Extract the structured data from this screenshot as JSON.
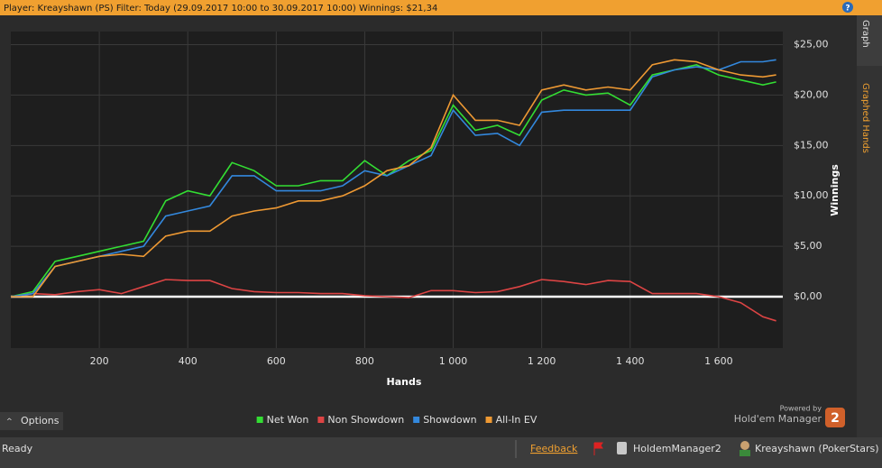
{
  "header": {
    "text": "Player: Kreayshawn (PS) Filter: Today (29.09.2017 10:00 to 30.09.2017 10:00) Winnings: $21,34",
    "help": "?"
  },
  "side_tabs": [
    "Graph",
    "Graphed Hands"
  ],
  "options": "Options",
  "branding": {
    "powered_by": "Powered by",
    "product": "Hold'em Manager",
    "version": "2"
  },
  "status_bar": {
    "status": "Ready",
    "feedback": "Feedback",
    "database": "HoldemManager2",
    "player": "Kreayshawn (PokerStars)"
  },
  "chart_data": {
    "type": "line",
    "xlabel": "Hands",
    "ylabel": "Winnings",
    "x": [
      0,
      50,
      100,
      150,
      200,
      250,
      300,
      350,
      400,
      450,
      500,
      550,
      600,
      650,
      700,
      750,
      800,
      850,
      900,
      950,
      1000,
      1050,
      1100,
      1150,
      1200,
      1250,
      1300,
      1350,
      1400,
      1450,
      1500,
      1550,
      1600,
      1650,
      1700,
      1730
    ],
    "series": [
      {
        "name": "Net Won",
        "color": "#33dd33",
        "values": [
          0,
          0.5,
          3.5,
          4,
          4.5,
          5,
          5.5,
          9.5,
          10.5,
          10,
          13.3,
          12.5,
          11,
          11,
          11.5,
          11.5,
          13.5,
          12,
          13.5,
          14.5,
          19,
          16.5,
          17,
          16,
          19.5,
          20.5,
          20,
          20.2,
          19,
          22,
          22.5,
          23,
          22,
          21.5,
          21,
          21.3
        ]
      },
      {
        "name": "Non Showdown",
        "color": "#dd4444",
        "values": [
          0,
          0.3,
          0.2,
          0.5,
          0.7,
          0.3,
          1,
          1.7,
          1.6,
          1.6,
          0.8,
          0.5,
          0.4,
          0.4,
          0.3,
          0.3,
          0.1,
          0,
          -0.1,
          0.6,
          0.6,
          0.4,
          0.5,
          1,
          1.7,
          1.5,
          1.2,
          1.6,
          1.5,
          0.3,
          0.3,
          0.3,
          0,
          -0.6,
          -2,
          -2.4
        ]
      },
      {
        "name": "Showdown",
        "color": "#3388dd",
        "values": [
          0,
          0.3,
          3,
          3.5,
          4,
          4.5,
          5,
          8,
          8.5,
          9,
          12,
          12,
          10.5,
          10.5,
          10.5,
          11,
          12.5,
          12,
          13,
          14,
          18.5,
          16,
          16.2,
          15,
          18.3,
          18.5,
          18.5,
          18.5,
          18.5,
          21.8,
          22.5,
          22.8,
          22.5,
          23.3,
          23.3,
          23.5
        ]
      },
      {
        "name": "All-In EV",
        "color": "#ee9933",
        "values": [
          0,
          0,
          3,
          3.5,
          4,
          4.2,
          4,
          6,
          6.5,
          6.5,
          8,
          8.5,
          8.8,
          9.5,
          9.5,
          10,
          11,
          12.5,
          13,
          14.8,
          20,
          17.5,
          17.5,
          17,
          20.5,
          21,
          20.5,
          20.8,
          20.5,
          23,
          23.5,
          23.3,
          22.5,
          22,
          21.8,
          22
        ]
      }
    ],
    "xlim": [
      0,
      1745
    ],
    "xticks": [
      200,
      400,
      600,
      800,
      {
        "value": 1000,
        "label": "1 000"
      },
      {
        "value": 1200,
        "label": "1 200"
      },
      {
        "value": 1400,
        "label": "1 400"
      },
      {
        "value": 1600,
        "label": "1 600"
      }
    ],
    "ylim": [
      -5.1,
      26.3
    ],
    "yticks": [
      {
        "value": 0,
        "label": "$0,00"
      },
      {
        "value": 5,
        "label": "$5,00"
      },
      {
        "value": 10,
        "label": "$10,00"
      },
      {
        "value": 15,
        "label": "$15,00"
      },
      {
        "value": 20,
        "label": "$20,00"
      },
      {
        "value": 25,
        "label": "$25,00"
      }
    ],
    "grid": true
  }
}
